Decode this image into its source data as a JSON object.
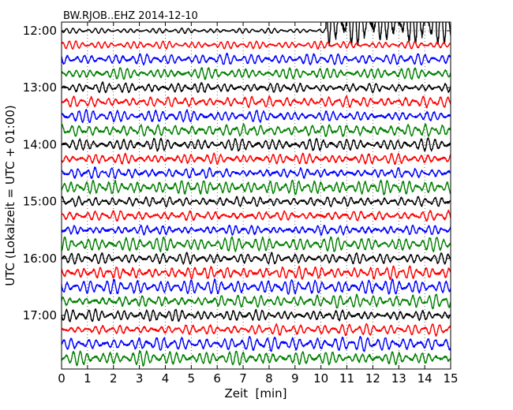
{
  "chart_data": {
    "type": "line",
    "title": "BW.RJOB..EHZ 2014-12-10",
    "xlabel": "Zeit  [min]",
    "ylabel": "UTC (Lokalzeit = UTC + 01:00)",
    "xlim": [
      0,
      15
    ],
    "x_ticks": [
      "0",
      "1",
      "2",
      "3",
      "4",
      "5",
      "6",
      "7",
      "8",
      "9",
      "10",
      "11",
      "12",
      "13",
      "14",
      "15"
    ],
    "y_ticks": [
      "12:00",
      "13:00",
      "14:00",
      "15:00",
      "16:00",
      "17:00"
    ],
    "grid": true,
    "trace_interval_min": 15,
    "first_trace": "12:00",
    "last_trace": "17:45",
    "series_colors": [
      "#000000",
      "#ff0000",
      "#0000ff",
      "#008000"
    ],
    "trace_amplitude_scale": [
      1.6,
      0.6,
      0.9,
      1.0,
      0.9,
      1.0,
      1.0,
      1.1,
      1.0,
      1.0,
      1.05,
      1.1,
      0.9,
      1.0,
      1.05,
      1.1,
      0.9,
      1.1,
      1.1,
      1.1,
      1.0,
      0.9,
      1.1,
      1.15
    ]
  }
}
